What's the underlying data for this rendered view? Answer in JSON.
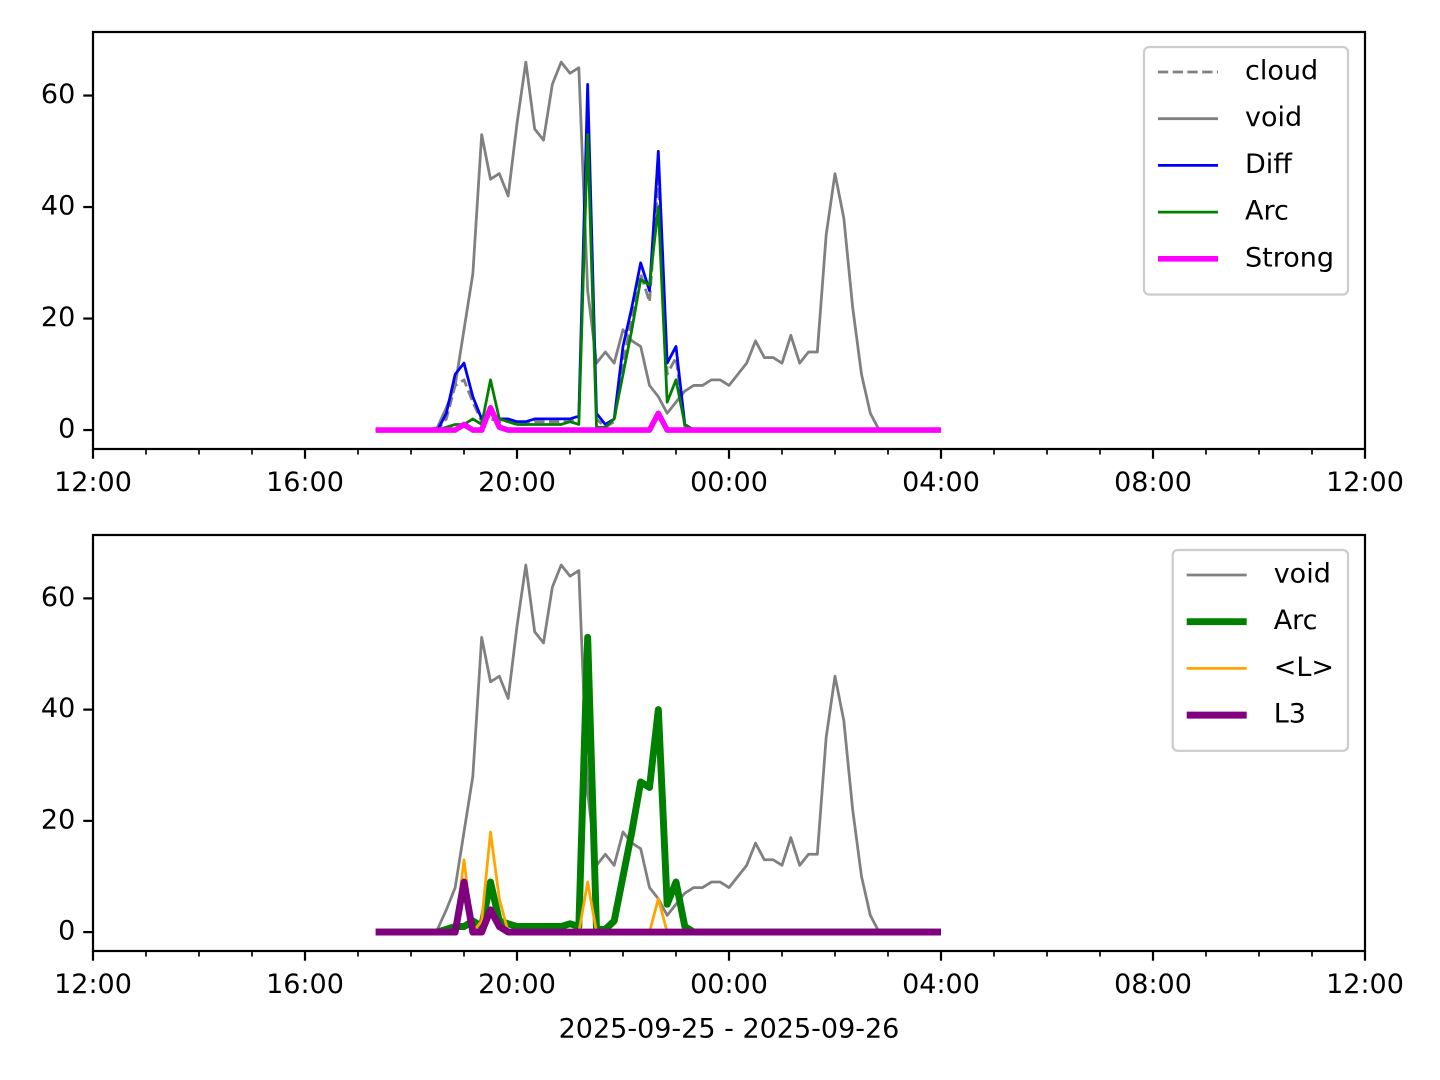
{
  "chart_data": [
    {
      "type": "line",
      "x": [
        "2025-09-25T17:20",
        "2025-09-25T17:30",
        "2025-09-25T17:40",
        "2025-09-25T17:50",
        "2025-09-25T18:00",
        "2025-09-25T18:10",
        "2025-09-25T18:20",
        "2025-09-25T18:30",
        "2025-09-25T18:40",
        "2025-09-25T18:50",
        "2025-09-25T19:00",
        "2025-09-25T19:10",
        "2025-09-25T19:20",
        "2025-09-25T19:30",
        "2025-09-25T19:40",
        "2025-09-25T19:50",
        "2025-09-25T20:00",
        "2025-09-25T20:10",
        "2025-09-25T20:20",
        "2025-09-25T20:30",
        "2025-09-25T20:40",
        "2025-09-25T20:50",
        "2025-09-25T21:00",
        "2025-09-25T21:10",
        "2025-09-25T21:20",
        "2025-09-25T21:30",
        "2025-09-25T21:40",
        "2025-09-25T21:50",
        "2025-09-25T22:00",
        "2025-09-25T22:10",
        "2025-09-25T22:20",
        "2025-09-25T22:30",
        "2025-09-25T22:40",
        "2025-09-25T22:50",
        "2025-09-25T23:00",
        "2025-09-25T23:10",
        "2025-09-25T23:20",
        "2025-09-25T23:30",
        "2025-09-25T23:40",
        "2025-09-25T23:50",
        "2025-09-26T00:00",
        "2025-09-26T00:10",
        "2025-09-26T00:20",
        "2025-09-26T00:30",
        "2025-09-26T00:40",
        "2025-09-26T00:50",
        "2025-09-26T01:00",
        "2025-09-26T01:10",
        "2025-09-26T01:20",
        "2025-09-26T01:30",
        "2025-09-26T01:40",
        "2025-09-26T01:50",
        "2025-09-26T02:00",
        "2025-09-26T02:10",
        "2025-09-26T02:20",
        "2025-09-26T02:30",
        "2025-09-26T02:40",
        "2025-09-26T02:50",
        "2025-09-26T03:00",
        "2025-09-26T03:10",
        "2025-09-26T03:20",
        "2025-09-26T03:30",
        "2025-09-26T03:40",
        "2025-09-26T03:50",
        "2025-09-26T04:00"
      ],
      "xlim": [
        "2025-09-25T12:00",
        "2025-09-26T12:00"
      ],
      "xticks": [
        {
          "value": "2025-09-25T12:00",
          "label": "12:00"
        },
        {
          "value": "2025-09-25T16:00",
          "label": "16:00"
        },
        {
          "value": "2025-09-25T20:00",
          "label": "20:00"
        },
        {
          "value": "2025-09-26T00:00",
          "label": "00:00"
        },
        {
          "value": "2025-09-26T04:00",
          "label": "04:00"
        },
        {
          "value": "2025-09-26T08:00",
          "label": "08:00"
        },
        {
          "value": "2025-09-26T12:00",
          "label": "12:00"
        }
      ],
      "xminorticks": [
        "2025-09-25T13:00",
        "2025-09-25T14:00",
        "2025-09-25T15:00",
        "2025-09-25T17:00",
        "2025-09-25T18:00",
        "2025-09-25T19:00",
        "2025-09-25T21:00",
        "2025-09-25T22:00",
        "2025-09-25T23:00",
        "2025-09-26T01:00",
        "2025-09-26T02:00",
        "2025-09-26T03:00",
        "2025-09-26T05:00",
        "2025-09-26T06:00",
        "2025-09-26T07:00",
        "2025-09-26T09:00",
        "2025-09-26T10:00",
        "2025-09-26T11:00"
      ],
      "ylim": [
        -3.4,
        71.4
      ],
      "yticks": [
        0,
        20,
        40,
        60
      ],
      "legend": "upper right",
      "series": [
        {
          "name": "cloud",
          "color": "#808080",
          "linewidth": 1,
          "linestyle": "dashed",
          "values": [
            0,
            0,
            0,
            0,
            0,
            0,
            0,
            0,
            2,
            8,
            9,
            5,
            1.5,
            2,
            1.5,
            1.5,
            1,
            1,
            1.5,
            1.5,
            1.5,
            1.5,
            1.5,
            2,
            55,
            2,
            0.5,
            1.5,
            12,
            20,
            28,
            23,
            45,
            10,
            13,
            0.5,
            0,
            0,
            0,
            0,
            0,
            0,
            0,
            0,
            0,
            0,
            0,
            0,
            0,
            0,
            0,
            0,
            0,
            0,
            0,
            0,
            0,
            0,
            0,
            0,
            0,
            0,
            0,
            0,
            0
          ]
        },
        {
          "name": "void",
          "color": "#808080",
          "linewidth": 1,
          "linestyle": "solid",
          "values": [
            0,
            0,
            0,
            0,
            0,
            0,
            0,
            0.5,
            4,
            8,
            18,
            28,
            53,
            45,
            46,
            42,
            55,
            66,
            54,
            52,
            62,
            66,
            64,
            65,
            25,
            12,
            14,
            12,
            18,
            16,
            15,
            8,
            6,
            3,
            5,
            7,
            8,
            8,
            9,
            9,
            8,
            10,
            12,
            16,
            13,
            13,
            12,
            17,
            12,
            14,
            14,
            35,
            46,
            38,
            22,
            10,
            3,
            0,
            null,
            null,
            null,
            null,
            null,
            null,
            null
          ]
        },
        {
          "name": "Diff",
          "color": "#0000ff",
          "linewidth": 1,
          "linestyle": "solid",
          "values": [
            0,
            0,
            0,
            0,
            0,
            0,
            0,
            0,
            3,
            10,
            12,
            6,
            2,
            3,
            2,
            2,
            1.5,
            1.5,
            2,
            2,
            2,
            2,
            2,
            2.5,
            62,
            3,
            1,
            2,
            15,
            22,
            30,
            25,
            50,
            12,
            15,
            1,
            0,
            0,
            0,
            0,
            0,
            0,
            0,
            0,
            0,
            0,
            0,
            0,
            0,
            0,
            0,
            0,
            0,
            0,
            0,
            0,
            0,
            0,
            0,
            0,
            0,
            0,
            0,
            0,
            0
          ]
        },
        {
          "name": "Arc",
          "color": "#008000",
          "linewidth": 1,
          "linestyle": "solid",
          "values": [
            0,
            0,
            0,
            0,
            0,
            0,
            0,
            0,
            0.5,
            1,
            1,
            2,
            1,
            9,
            2,
            1.5,
            1,
            1,
            1,
            1,
            1,
            1,
            1.5,
            1,
            53,
            0.5,
            0.5,
            2,
            10,
            18,
            27,
            26,
            40,
            5,
            9,
            1,
            0,
            0,
            0,
            0,
            0,
            0,
            0,
            0,
            0,
            0,
            0,
            0,
            0,
            0,
            0,
            0,
            0,
            0,
            0,
            0,
            0,
            0,
            0,
            0,
            0,
            0,
            0,
            0,
            0
          ]
        },
        {
          "name": "Strong",
          "color": "#ff00ff",
          "linewidth": 2,
          "linestyle": "solid",
          "values": [
            0,
            0,
            0,
            0,
            0,
            0,
            0,
            0,
            0,
            0,
            1,
            0,
            0,
            4,
            0.5,
            0,
            0,
            0,
            0,
            0,
            0,
            0,
            0,
            0,
            0,
            0,
            0,
            0,
            0,
            0,
            0,
            0,
            3,
            0,
            0,
            0,
            0,
            0,
            0,
            0,
            0,
            0,
            0,
            0,
            0,
            0,
            0,
            0,
            0,
            0,
            0,
            0,
            0,
            0,
            0,
            0,
            0,
            0,
            0,
            0,
            0,
            0,
            0,
            0,
            0
          ]
        }
      ]
    },
    {
      "type": "line",
      "x": [
        "2025-09-25T17:20",
        "2025-09-25T17:30",
        "2025-09-25T17:40",
        "2025-09-25T17:50",
        "2025-09-25T18:00",
        "2025-09-25T18:10",
        "2025-09-25T18:20",
        "2025-09-25T18:30",
        "2025-09-25T18:40",
        "2025-09-25T18:50",
        "2025-09-25T19:00",
        "2025-09-25T19:10",
        "2025-09-25T19:20",
        "2025-09-25T19:30",
        "2025-09-25T19:40",
        "2025-09-25T19:50",
        "2025-09-25T20:00",
        "2025-09-25T20:10",
        "2025-09-25T20:20",
        "2025-09-25T20:30",
        "2025-09-25T20:40",
        "2025-09-25T20:50",
        "2025-09-25T21:00",
        "2025-09-25T21:10",
        "2025-09-25T21:20",
        "2025-09-25T21:30",
        "2025-09-25T21:40",
        "2025-09-25T21:50",
        "2025-09-25T22:00",
        "2025-09-25T22:10",
        "2025-09-25T22:20",
        "2025-09-25T22:30",
        "2025-09-25T22:40",
        "2025-09-25T22:50",
        "2025-09-25T23:00",
        "2025-09-25T23:10",
        "2025-09-25T23:20",
        "2025-09-25T23:30",
        "2025-09-25T23:40",
        "2025-09-25T23:50",
        "2025-09-26T00:00",
        "2025-09-26T00:10",
        "2025-09-26T00:20",
        "2025-09-26T00:30",
        "2025-09-26T00:40",
        "2025-09-26T00:50",
        "2025-09-26T01:00",
        "2025-09-26T01:10",
        "2025-09-26T01:20",
        "2025-09-26T01:30",
        "2025-09-26T01:40",
        "2025-09-26T01:50",
        "2025-09-26T02:00",
        "2025-09-26T02:10",
        "2025-09-26T02:20",
        "2025-09-26T02:30",
        "2025-09-26T02:40",
        "2025-09-26T02:50",
        "2025-09-26T03:00",
        "2025-09-26T03:10",
        "2025-09-26T03:20",
        "2025-09-26T03:30",
        "2025-09-26T03:40",
        "2025-09-26T03:50",
        "2025-09-26T04:00"
      ],
      "xlim": [
        "2025-09-25T12:00",
        "2025-09-26T12:00"
      ],
      "xticks": [
        {
          "value": "2025-09-25T12:00",
          "label": "12:00"
        },
        {
          "value": "2025-09-25T16:00",
          "label": "16:00"
        },
        {
          "value": "2025-09-25T20:00",
          "label": "20:00"
        },
        {
          "value": "2025-09-26T00:00",
          "label": "00:00"
        },
        {
          "value": "2025-09-26T04:00",
          "label": "04:00"
        },
        {
          "value": "2025-09-26T08:00",
          "label": "08:00"
        },
        {
          "value": "2025-09-26T12:00",
          "label": "12:00"
        }
      ],
      "xminorticks": [
        "2025-09-25T13:00",
        "2025-09-25T14:00",
        "2025-09-25T15:00",
        "2025-09-25T17:00",
        "2025-09-25T18:00",
        "2025-09-25T19:00",
        "2025-09-25T21:00",
        "2025-09-25T22:00",
        "2025-09-25T23:00",
        "2025-09-26T01:00",
        "2025-09-26T02:00",
        "2025-09-26T03:00",
        "2025-09-26T05:00",
        "2025-09-26T06:00",
        "2025-09-26T07:00",
        "2025-09-26T09:00",
        "2025-09-26T10:00",
        "2025-09-26T11:00"
      ],
      "xlabel": "2025-09-25 - 2025-09-26",
      "ylim": [
        -3.4,
        71.4
      ],
      "yticks": [
        0,
        20,
        40,
        60
      ],
      "legend": "upper right",
      "series": [
        {
          "name": "void",
          "color": "#808080",
          "linewidth": 1,
          "linestyle": "solid",
          "values": [
            0,
            0,
            0,
            0,
            0,
            0,
            0,
            0.5,
            4,
            8,
            18,
            28,
            53,
            45,
            46,
            42,
            55,
            66,
            54,
            52,
            62,
            66,
            64,
            65,
            25,
            12,
            14,
            12,
            18,
            16,
            15,
            8,
            6,
            3,
            5,
            7,
            8,
            8,
            9,
            9,
            8,
            10,
            12,
            16,
            13,
            13,
            12,
            17,
            12,
            14,
            14,
            35,
            46,
            38,
            22,
            10,
            3,
            0,
            null,
            null,
            null,
            null,
            null,
            null,
            null
          ]
        },
        {
          "name": "Arc",
          "color": "#008000",
          "linewidth": 2.5,
          "linestyle": "solid",
          "values": [
            0,
            0,
            0,
            0,
            0,
            0,
            0,
            0,
            0.5,
            1,
            1,
            2,
            1,
            9,
            2,
            1.5,
            1,
            1,
            1,
            1,
            1,
            1,
            1.5,
            1,
            53,
            0.5,
            0.5,
            2,
            10,
            18,
            27,
            26,
            40,
            5,
            9,
            1,
            0,
            0,
            0,
            0,
            0,
            0,
            0,
            0,
            0,
            0,
            0,
            0,
            0,
            0,
            0,
            0,
            0,
            0,
            0,
            0,
            0,
            0,
            0,
            0,
            0,
            0,
            0,
            0,
            0
          ]
        },
        {
          "name": "<L>",
          "color": "#ffa500",
          "linewidth": 1,
          "linestyle": "solid",
          "values": [
            0,
            0,
            0,
            0,
            0,
            0,
            0,
            0,
            0,
            0,
            13,
            0,
            2,
            18,
            6,
            0,
            0,
            0,
            0,
            0,
            0,
            0,
            0,
            0,
            9,
            0,
            0,
            0,
            0,
            0,
            0,
            0,
            6,
            0,
            0,
            0,
            0,
            0,
            0,
            0,
            0,
            0,
            0,
            0,
            0,
            0,
            0,
            0,
            0,
            0,
            0,
            0,
            0,
            0,
            0,
            0,
            0,
            0,
            0,
            0,
            0,
            0,
            0,
            0,
            0
          ]
        },
        {
          "name": "L3",
          "color": "#800080",
          "linewidth": 2.5,
          "linestyle": "solid",
          "values": [
            0,
            0,
            0,
            0,
            0,
            0,
            0,
            0,
            0,
            0,
            9,
            0,
            0,
            4,
            1,
            0,
            0,
            0,
            0,
            0,
            0,
            0,
            0,
            0,
            0,
            0,
            0,
            0,
            0,
            0,
            0,
            0,
            0,
            0,
            0,
            0,
            0,
            0,
            0,
            0,
            0,
            0,
            0,
            0,
            0,
            0,
            0,
            0,
            0,
            0,
            0,
            0,
            0,
            0,
            0,
            0,
            0,
            0,
            0,
            0,
            0,
            0,
            0,
            0,
            0
          ]
        }
      ]
    }
  ]
}
